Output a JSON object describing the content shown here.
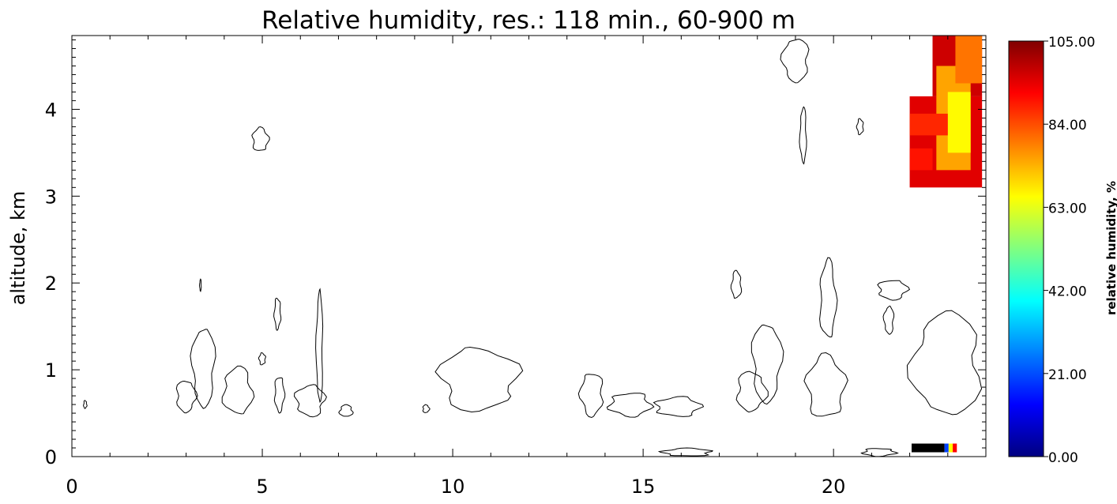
{
  "chart_data": {
    "type": "heatmap",
    "title": "Relative humidity, res.: 118 min.,  60-900 m",
    "xlabel": "",
    "ylabel": "altitude, km",
    "xlim": [
      0,
      24
    ],
    "ylim": [
      0,
      4.85
    ],
    "x_ticks": [
      "0",
      "5",
      "10",
      "15",
      "20"
    ],
    "y_ticks": [
      "0",
      "1",
      "2",
      "3",
      "4"
    ],
    "grid": false,
    "colorbar": {
      "label": "relative humidity, %",
      "range": [
        0,
        105
      ],
      "tick_labels": [
        "0.00",
        "21.00",
        "42.00",
        "63.00",
        "84.00",
        "105.00"
      ],
      "colors": [
        "#000080",
        "#0000ff",
        "#0080ff",
        "#00ffff",
        "#80ff80",
        "#ffff00",
        "#ff8000",
        "#ff0000",
        "#800000"
      ]
    },
    "heatmap_blocks": [
      {
        "x": [
          22.0,
          23.9
        ],
        "y": [
          3.1,
          4.15
        ],
        "rh": 95
      },
      {
        "x": [
          22.6,
          23.9
        ],
        "y": [
          4.15,
          4.85
        ],
        "rh": 97
      },
      {
        "x": [
          22.7,
          23.6
        ],
        "y": [
          3.3,
          4.5
        ],
        "rh": 75
      },
      {
        "x": [
          23.0,
          23.6
        ],
        "y": [
          3.5,
          4.2
        ],
        "rh": 66
      },
      {
        "x": [
          22.0,
          23.0
        ],
        "y": [
          3.7,
          3.95
        ],
        "rh": 88
      },
      {
        "x": [
          22.0,
          22.6
        ],
        "y": [
          3.3,
          3.55
        ],
        "rh": 90
      },
      {
        "x": [
          23.2,
          23.9
        ],
        "y": [
          4.3,
          4.85
        ],
        "rh": 80
      }
    ],
    "contours": [
      {
        "x": [
          0.3,
          0.4
        ],
        "y": [
          0.55,
          0.65
        ]
      },
      {
        "x": [
          2.7,
          3.3
        ],
        "y": [
          0.5,
          0.9
        ]
      },
      {
        "x": [
          3.1,
          3.8
        ],
        "y": [
          0.55,
          1.55
        ]
      },
      {
        "x": [
          3.35,
          3.4
        ],
        "y": [
          1.9,
          2.05
        ]
      },
      {
        "x": [
          3.9,
          4.8
        ],
        "y": [
          0.45,
          1.05
        ]
      },
      {
        "x": [
          4.7,
          5.2
        ],
        "y": [
          3.5,
          3.8
        ]
      },
      {
        "x": [
          4.9,
          5.1
        ],
        "y": [
          1.05,
          1.2
        ]
      },
      {
        "x": [
          5.3,
          5.5
        ],
        "y": [
          1.45,
          1.85
        ]
      },
      {
        "x": [
          5.3,
          5.6
        ],
        "y": [
          0.5,
          0.95
        ]
      },
      {
        "x": [
          5.8,
          6.7
        ],
        "y": [
          0.45,
          0.85
        ]
      },
      {
        "x": [
          6.4,
          6.6
        ],
        "y": [
          0.55,
          1.95
        ]
      },
      {
        "x": [
          7.0,
          7.4
        ],
        "y": [
          0.45,
          0.6
        ]
      },
      {
        "x": [
          9.2,
          9.4
        ],
        "y": [
          0.5,
          0.6
        ]
      },
      {
        "x": [
          9.5,
          11.9
        ],
        "y": [
          0.5,
          1.3
        ]
      },
      {
        "x": [
          13.3,
          14.0
        ],
        "y": [
          0.45,
          1.0
        ]
      },
      {
        "x": [
          14.0,
          15.3
        ],
        "y": [
          0.45,
          0.75
        ]
      },
      {
        "x": [
          15.2,
          16.6
        ],
        "y": [
          0.45,
          0.7
        ]
      },
      {
        "x": [
          15.4,
          16.9
        ],
        "y": [
          0.0,
          0.1
        ]
      },
      {
        "x": [
          17.3,
          17.6
        ],
        "y": [
          1.8,
          2.15
        ]
      },
      {
        "x": [
          17.4,
          18.3
        ],
        "y": [
          0.5,
          1.0
        ]
      },
      {
        "x": [
          17.8,
          18.7
        ],
        "y": [
          0.6,
          1.6
        ]
      },
      {
        "x": [
          18.6,
          19.4
        ],
        "y": [
          4.3,
          4.85
        ]
      },
      {
        "x": [
          19.1,
          19.3
        ],
        "y": [
          3.35,
          4.05
        ]
      },
      {
        "x": [
          19.6,
          20.1
        ],
        "y": [
          1.3,
          2.3
        ]
      },
      {
        "x": [
          19.2,
          20.4
        ],
        "y": [
          0.4,
          1.2
        ]
      },
      {
        "x": [
          20.6,
          20.8
        ],
        "y": [
          3.7,
          3.9
        ]
      },
      {
        "x": [
          20.7,
          21.7
        ],
        "y": [
          0.0,
          0.1
        ]
      },
      {
        "x": [
          21.1,
          22.0
        ],
        "y": [
          1.8,
          2.05
        ]
      },
      {
        "x": [
          21.3,
          21.6
        ],
        "y": [
          1.4,
          1.75
        ]
      },
      {
        "x": [
          21.9,
          24.0
        ],
        "y": [
          0.4,
          1.7
        ]
      }
    ],
    "annotation_boxes": [
      {
        "x": [
          22.05,
          23.25
        ],
        "y": [
          0.05,
          0.15
        ],
        "colors": [
          "#000000",
          "#0040ff",
          "#ffff00",
          "#ff0000"
        ]
      }
    ]
  }
}
